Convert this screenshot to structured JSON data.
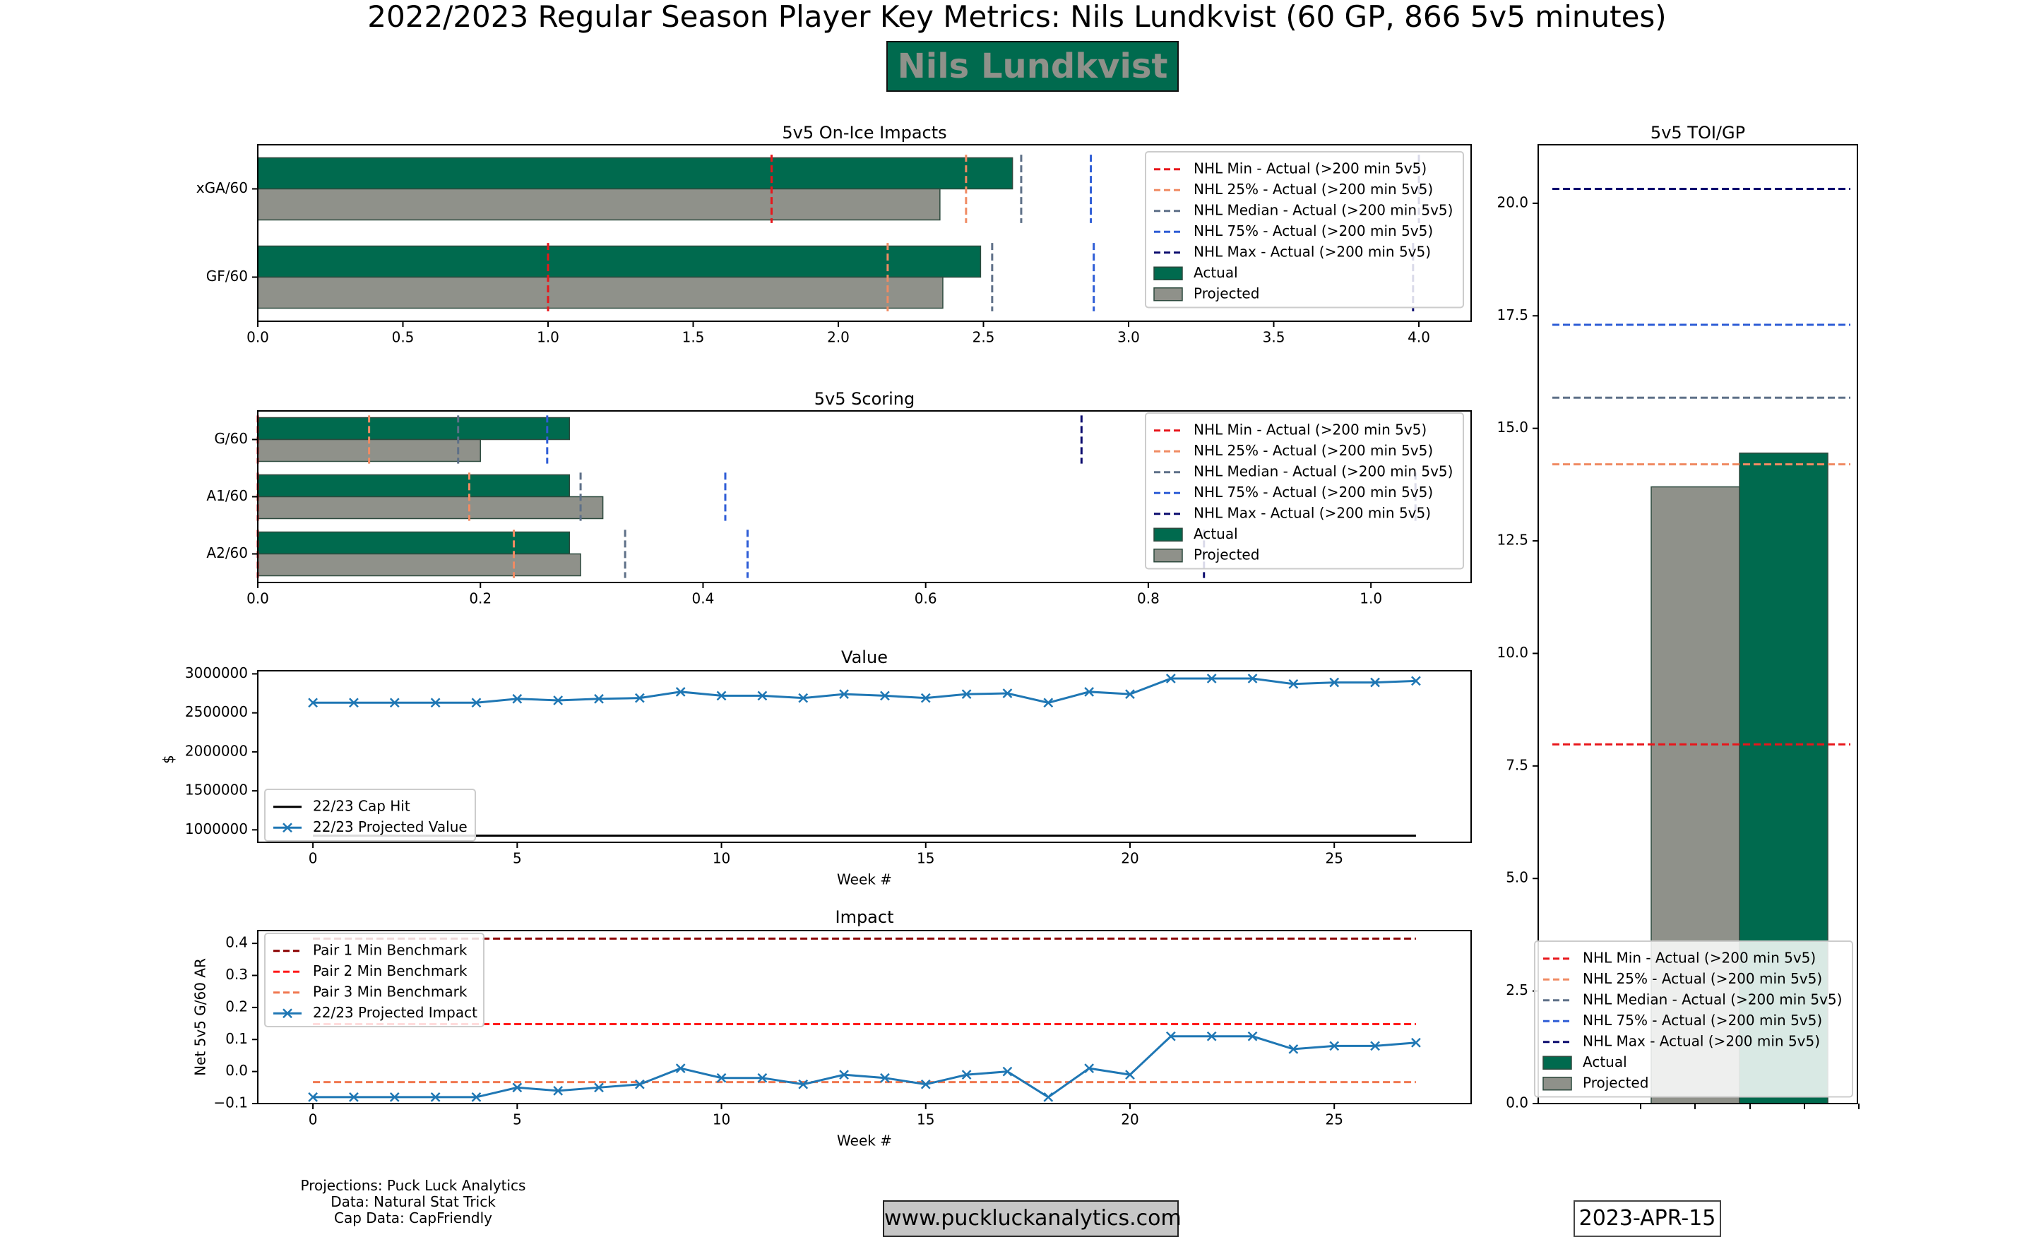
{
  "header": {
    "title": "2022/2023 Regular Season Player Key Metrics: Nils Lundkvist (60 GP, 866 5v5 minutes)",
    "player_name": "Nils Lundkvist"
  },
  "footer": {
    "credits": [
      "Projections: Puck Luck Analytics",
      "Data: Natural Stat Trick",
      "Cap Data: CapFriendly"
    ],
    "website": "www.puckluckanalytics.com",
    "date": "2023-APR-15"
  },
  "colors": {
    "actual": "#006a4e",
    "projected": "#8f918a",
    "nhl_min": "#e8161b",
    "nhl_25": "#f08b63",
    "nhl_median": "#5e7088",
    "nhl_75": "#2e5dd6",
    "nhl_max": "#0b0b6e",
    "pair1": "#8b0000",
    "pair2": "#ff1a1a",
    "pair3": "#f07850",
    "projected_line": "#1f77b4",
    "cap_hit": "#000000"
  },
  "legend_labels": {
    "nhl_min": "NHL Min - Actual (>200 min 5v5)",
    "nhl_25": "NHL 25% - Actual (>200 min 5v5)",
    "nhl_median": "NHL Median - Actual (>200 min 5v5)",
    "nhl_75": "NHL 75% - Actual (>200 min 5v5)",
    "nhl_max": "NHL Max - Actual (>200 min 5v5)",
    "actual": "Actual",
    "projected": "Projected"
  },
  "chart_data": [
    {
      "id": "impacts",
      "type": "bar",
      "orientation": "horizontal",
      "title": "5v5 On-Ice Impacts",
      "categories": [
        "xGA/60",
        "GF/60"
      ],
      "series": [
        {
          "name": "Actual",
          "values": [
            2.6,
            2.49
          ]
        },
        {
          "name": "Projected",
          "values": [
            2.35,
            2.36
          ]
        }
      ],
      "benchmarks": {
        "nhl_min": [
          1.77,
          1.0
        ],
        "nhl_25": [
          2.44,
          2.17
        ],
        "nhl_median": [
          2.63,
          2.53
        ],
        "nhl_75": [
          2.87,
          2.88
        ],
        "nhl_max": [
          4.0,
          3.98
        ]
      },
      "xlim": [
        0,
        4.18
      ],
      "xticks": [
        "0.0",
        "0.5",
        "1.0",
        "1.5",
        "2.0",
        "2.5",
        "3.0",
        "3.5",
        "4.0"
      ],
      "legend": "top-right"
    },
    {
      "id": "scoring",
      "type": "bar",
      "orientation": "horizontal",
      "title": "5v5 Scoring",
      "categories": [
        "G/60",
        "A1/60",
        "A2/60"
      ],
      "series": [
        {
          "name": "Actual",
          "values": [
            0.28,
            0.28,
            0.28
          ]
        },
        {
          "name": "Projected",
          "values": [
            0.2,
            0.31,
            0.29
          ]
        }
      ],
      "benchmarks": {
        "nhl_min": [
          0.0,
          0.0,
          0.0
        ],
        "nhl_25": [
          0.1,
          0.19,
          0.23
        ],
        "nhl_median": [
          0.18,
          0.29,
          0.33
        ],
        "nhl_75": [
          0.26,
          0.42,
          0.44
        ],
        "nhl_max": [
          0.74,
          1.04,
          0.85
        ]
      },
      "xlim": [
        0,
        1.09
      ],
      "xticks": [
        "0.0",
        "0.2",
        "0.4",
        "0.6",
        "0.8",
        "1.0"
      ],
      "legend": "top-right"
    },
    {
      "id": "value",
      "type": "line",
      "title": "Value",
      "xlabel": "Week #",
      "ylabel": "$",
      "x": [
        0,
        1,
        2,
        3,
        4,
        5,
        6,
        7,
        8,
        9,
        10,
        11,
        12,
        13,
        14,
        15,
        16,
        17,
        18,
        19,
        20,
        21,
        22,
        23,
        24,
        25,
        26,
        27
      ],
      "series": [
        {
          "name": "22/23 Cap Hit",
          "values": [
            925000,
            925000,
            925000,
            925000,
            925000,
            925000,
            925000,
            925000,
            925000,
            925000,
            925000,
            925000,
            925000,
            925000,
            925000,
            925000,
            925000,
            925000,
            925000,
            925000,
            925000,
            925000,
            925000,
            925000,
            925000,
            925000,
            925000,
            925000
          ]
        },
        {
          "name": "22/23 Projected Value",
          "values": [
            2630000,
            2630000,
            2630000,
            2630000,
            2630000,
            2680000,
            2660000,
            2680000,
            2690000,
            2770000,
            2720000,
            2720000,
            2690000,
            2740000,
            2720000,
            2690000,
            2740000,
            2750000,
            2630000,
            2770000,
            2740000,
            2940000,
            2940000,
            2940000,
            2870000,
            2890000,
            2890000,
            2910000
          ]
        }
      ],
      "xlim": [
        -1.35,
        28.35
      ],
      "ylim": [
        840000,
        3040000
      ],
      "yticks": [
        "1000000",
        "1500000",
        "2000000",
        "2500000",
        "3000000"
      ],
      "xticks": [
        "0",
        "5",
        "10",
        "15",
        "20",
        "25"
      ],
      "legend": "bottom-left"
    },
    {
      "id": "impact",
      "type": "line",
      "title": "Impact",
      "xlabel": "Week #",
      "ylabel": "Net 5v5 G/60 AR",
      "x": [
        0,
        1,
        2,
        3,
        4,
        5,
        6,
        7,
        8,
        9,
        10,
        11,
        12,
        13,
        14,
        15,
        16,
        17,
        18,
        19,
        20,
        21,
        22,
        23,
        24,
        25,
        26,
        27
      ],
      "series": [
        {
          "name": "Pair 1 Min Benchmark",
          "constant": 0.415
        },
        {
          "name": "Pair 2 Min Benchmark",
          "constant": 0.148
        },
        {
          "name": "Pair 3 Min Benchmark",
          "constant": -0.033
        },
        {
          "name": "22/23 Projected Impact",
          "values": [
            -0.08,
            -0.08,
            -0.08,
            -0.08,
            -0.08,
            -0.05,
            -0.06,
            -0.05,
            -0.04,
            0.01,
            -0.02,
            -0.02,
            -0.04,
            -0.01,
            -0.02,
            -0.04,
            -0.01,
            0.0,
            -0.08,
            0.01,
            -0.01,
            0.11,
            0.11,
            0.11,
            0.07,
            0.08,
            0.08,
            0.09
          ]
        }
      ],
      "xlim": [
        -1.35,
        28.35
      ],
      "ylim": [
        -0.1,
        0.44
      ],
      "yticks": [
        "−0.1",
        "0.0",
        "0.1",
        "0.2",
        "0.3",
        "0.4"
      ],
      "xticks": [
        "0",
        "5",
        "10",
        "15",
        "20",
        "25"
      ],
      "legend": "top-left"
    },
    {
      "id": "toi",
      "type": "bar",
      "title": "5v5 TOI/GP",
      "series": [
        {
          "name": "Projected",
          "values": [
            13.7
          ]
        },
        {
          "name": "Actual",
          "values": [
            14.45
          ]
        }
      ],
      "benchmarks": {
        "nhl_min": [
          7.98
        ],
        "nhl_25": [
          14.2
        ],
        "nhl_median": [
          15.68
        ],
        "nhl_75": [
          17.3
        ],
        "nhl_max": [
          20.32
        ]
      },
      "ylim": [
        0,
        21.3
      ],
      "yticks": [
        "0.0",
        "2.5",
        "5.0",
        "7.5",
        "10.0",
        "12.5",
        "15.0",
        "17.5",
        "20.0"
      ],
      "legend": "bottom-right"
    }
  ]
}
